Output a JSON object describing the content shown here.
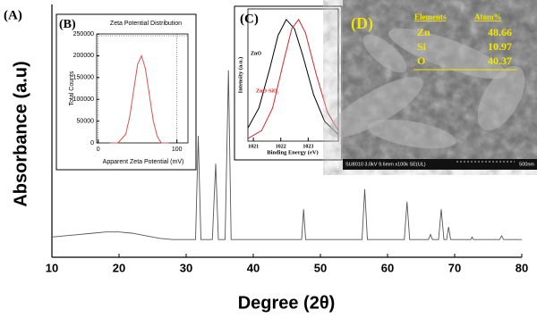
{
  "chart_data": [
    {
      "type": "line",
      "label": "(A)",
      "x_label": "Degree (2θ)",
      "y_label": "Absorbance (a.u)",
      "xlim": [
        10,
        80
      ],
      "xticks": [
        10,
        20,
        30,
        40,
        50,
        60,
        70,
        80
      ],
      "ylim": [
        0,
        100
      ],
      "series": [
        {
          "color": "#555555",
          "x": [
            10,
            12,
            14,
            16,
            18,
            20,
            22,
            24,
            26,
            28,
            30,
            31.4,
            31.8,
            32.2,
            33.9,
            34.4,
            34.8,
            35.8,
            36.3,
            36.7,
            38,
            40,
            42,
            44,
            46,
            47.2,
            47.5,
            47.8,
            50,
            52,
            54,
            56.2,
            56.6,
            57,
            60,
            62.5,
            62.9,
            63.3,
            65,
            66.1,
            66.4,
            66.7,
            67.6,
            68,
            68.4,
            68.8,
            69.1,
            69.4,
            71,
            72.4,
            72.6,
            72.8,
            75,
            76.7,
            77,
            77.3,
            80
          ],
          "values": [
            8,
            8.5,
            9,
            9.5,
            10,
            10,
            9.5,
            8.5,
            7.5,
            7,
            7,
            7,
            48,
            7,
            7,
            37,
            7,
            7,
            74,
            7,
            7,
            7,
            7,
            7,
            7,
            7,
            19,
            7,
            7,
            7,
            7,
            7,
            27,
            7,
            7,
            7,
            22,
            7,
            7,
            7,
            9,
            7,
            7,
            19,
            7,
            7,
            12,
            7,
            7,
            7,
            8,
            7,
            7,
            7,
            8.5,
            7,
            7
          ]
        }
      ]
    },
    {
      "type": "line",
      "label": "(B)",
      "title": "Zeta Potential Distribution",
      "x_label": "Apparent Zeta Potential (mV)",
      "y_label": "Total Counts",
      "xlim": [
        -2,
        114
      ],
      "xticks": [
        0,
        100
      ],
      "ylim": [
        0,
        250000
      ],
      "yticks": [
        0,
        50000,
        100000,
        150000,
        200000,
        250000
      ],
      "grid": true,
      "series": [
        {
          "color": "#d9534f",
          "x": [
            15,
            25,
            35,
            40,
            45,
            50,
            55,
            60,
            65,
            70,
            75,
            80,
            90
          ],
          "values": [
            0,
            0,
            20000,
            60000,
            120000,
            180000,
            200000,
            170000,
            110000,
            50000,
            15000,
            0,
            0
          ]
        }
      ]
    },
    {
      "type": "line",
      "label": "(C)",
      "x_label": "Binding Energy (eV)",
      "y_label": "Intensity (a.u.)",
      "xlim": [
        1020.8,
        1024.1
      ],
      "xticks": [
        1021,
        1022,
        1023
      ],
      "ylim": [
        0,
        100
      ],
      "series": [
        {
          "name": "ZnO",
          "color": "#000000",
          "x": [
            1020.8,
            1021.2,
            1021.6,
            1021.9,
            1022.2,
            1022.5,
            1022.8,
            1023.2,
            1023.6,
            1024.1
          ],
          "values": [
            10,
            25,
            55,
            80,
            92,
            85,
            65,
            35,
            15,
            5
          ]
        },
        {
          "name": "ZnO-SiO₂",
          "color": "#d62728",
          "x": [
            1020.8,
            1021.3,
            1021.7,
            1022.1,
            1022.4,
            1022.65,
            1022.9,
            1023.3,
            1023.7,
            1024.1
          ],
          "values": [
            2,
            8,
            25,
            60,
            85,
            92,
            82,
            50,
            22,
            8
          ]
        }
      ]
    },
    {
      "type": "image",
      "label": "(D)",
      "table": {
        "header": [
          "Elements",
          "Atom%"
        ],
        "rows": [
          [
            "Zn",
            48.66
          ],
          [
            "Si",
            10.97
          ],
          [
            "O",
            40.37
          ]
        ]
      },
      "caption": "SU8010 3.0kV 9.6mm x100k SE(UL)",
      "scale_label": "500nm"
    }
  ]
}
